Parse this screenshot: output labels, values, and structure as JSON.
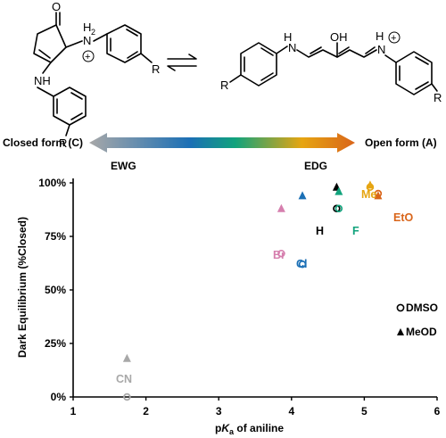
{
  "scheme": {
    "atoms": {
      "oxygen_ketone": "O",
      "nh2_plus": "H",
      "nh2_sub": "2",
      "n_h_left": "N",
      "n_h_left_h": "H",
      "n_plus": "N",
      "nh_amine": "NH",
      "r_1": "R",
      "r_2": "R",
      "r_3": "R",
      "r_4": "R",
      "oh": "OH",
      "h_right": "H",
      "n_h_open": "N",
      "n_h_open_h": "H",
      "n_plus_open": "N",
      "plus_sign": "+"
    },
    "gradient_arrow": {
      "left_label": "Closed form (C)",
      "right_label": "Open form (A)",
      "left_sub": "EWG",
      "right_sub": "EDG",
      "colors": [
        "#a8a8a8",
        "#1b6fb5",
        "#11a37c",
        "#e6a512",
        "#d9651a"
      ]
    }
  },
  "chart_data": {
    "type": "scatter",
    "xlabel_prefix": "p",
    "xlabel_italic": "K",
    "xlabel_sub": "a",
    "xlabel_suffix": " of aniline",
    "ylabel": "Dark Equilibrium (%Closed)",
    "xlim": [
      1,
      6
    ],
    "ylim": [
      0,
      100
    ],
    "xticks": [
      1,
      2,
      3,
      4,
      5,
      6
    ],
    "yticks": [
      {
        "value": 0,
        "label": "0%"
      },
      {
        "value": 25,
        "label": "25%"
      },
      {
        "value": 50,
        "label": "50%"
      },
      {
        "value": 75,
        "label": "75%"
      },
      {
        "value": 100,
        "label": "100%"
      }
    ],
    "series": [
      {
        "name": "DMSO",
        "marker": "circle-open",
        "points": [
          {
            "label": "CN",
            "x": 1.74,
            "y": 0,
            "color": "#a8a8a8"
          },
          {
            "label": "Br",
            "x": 3.86,
            "y": 67,
            "color": "#d67fae"
          },
          {
            "label": "Cl",
            "x": 4.15,
            "y": 62,
            "color": "#1b6fb5"
          },
          {
            "label": "H",
            "x": 4.62,
            "y": 88,
            "color": "#000000"
          },
          {
            "label": "F",
            "x": 4.65,
            "y": 88,
            "color": "#11a37c"
          },
          {
            "label": "Me",
            "x": 5.08,
            "y": 98,
            "color": "#e6a512"
          },
          {
            "label": "EtO",
            "x": 5.19,
            "y": 95,
            "color": "#d9651a"
          }
        ]
      },
      {
        "name": "MeOD",
        "marker": "triangle-filled",
        "points": [
          {
            "label": "CN",
            "x": 1.74,
            "y": 18,
            "color": "#a8a8a8"
          },
          {
            "label": "Br",
            "x": 3.86,
            "y": 88,
            "color": "#d67fae"
          },
          {
            "label": "Cl",
            "x": 4.15,
            "y": 94,
            "color": "#1b6fb5"
          },
          {
            "label": "H",
            "x": 4.62,
            "y": 98,
            "color": "#000000"
          },
          {
            "label": "F",
            "x": 4.65,
            "y": 96,
            "color": "#11a37c"
          },
          {
            "label": "Me",
            "x": 5.08,
            "y": 99,
            "color": "#e6a512"
          },
          {
            "label": "EtO",
            "x": 5.19,
            "y": 94,
            "color": "#d9651a"
          }
        ]
      }
    ],
    "point_labels": [
      {
        "text": "CN",
        "color": "#a8a8a8"
      },
      {
        "text": "Br",
        "color": "#d67fae"
      },
      {
        "text": "Cl",
        "color": "#1b6fb5"
      },
      {
        "text": "H",
        "color": "#000000"
      },
      {
        "text": "F",
        "color": "#11a37c"
      },
      {
        "text": "Me",
        "color": "#e6a512"
      },
      {
        "text": "EtO",
        "color": "#d9651a"
      }
    ],
    "legend": {
      "placement": "right",
      "entries": [
        "DMSO",
        "MeOD"
      ]
    },
    "grid": false
  }
}
